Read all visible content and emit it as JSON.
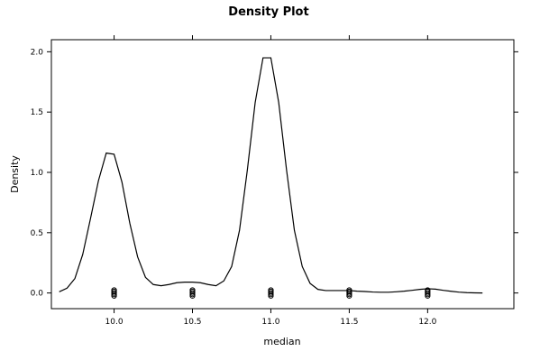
{
  "chart_data": {
    "type": "line",
    "title": "Density Plot",
    "xlabel": "median",
    "ylabel": "Density",
    "xlim": [
      9.6,
      12.55
    ],
    "ylim": [
      -0.13,
      2.1
    ],
    "x_ticks": [
      10.0,
      10.5,
      11.0,
      11.5,
      12.0
    ],
    "x_tick_labels": [
      "10.0",
      "10.5",
      "11.0",
      "11.5",
      "12.0"
    ],
    "y_ticks": [
      0.0,
      0.5,
      1.0,
      1.5,
      2.0
    ],
    "y_tick_labels": [
      "0.0",
      "0.5",
      "1.0",
      "1.5",
      "2.0"
    ],
    "grid": false,
    "series": [
      {
        "x": [
          9.65,
          9.7,
          9.75,
          9.8,
          9.85,
          9.9,
          9.95,
          10.0,
          10.05,
          10.1,
          10.15,
          10.2,
          10.25,
          10.3,
          10.35,
          10.4,
          10.45,
          10.5,
          10.55,
          10.6,
          10.65,
          10.7,
          10.75,
          10.8,
          10.85,
          10.9,
          10.95,
          11.0,
          11.05,
          11.1,
          11.15,
          11.2,
          11.25,
          11.3,
          11.35,
          11.4,
          11.45,
          11.5,
          11.55,
          11.6,
          11.65,
          11.7,
          11.75,
          11.8,
          11.85,
          11.9,
          11.95,
          12.0,
          12.05,
          12.1,
          12.15,
          12.2,
          12.25,
          12.3,
          12.35
        ],
        "y": [
          0.01,
          0.04,
          0.12,
          0.32,
          0.62,
          0.93,
          1.16,
          1.15,
          0.92,
          0.58,
          0.3,
          0.13,
          0.07,
          0.06,
          0.07,
          0.085,
          0.09,
          0.09,
          0.085,
          0.07,
          0.06,
          0.1,
          0.22,
          0.52,
          1.02,
          1.58,
          1.95,
          1.95,
          1.58,
          1.02,
          0.52,
          0.22,
          0.08,
          0.03,
          0.02,
          0.02,
          0.02,
          0.02,
          0.015,
          0.012,
          0.008,
          0.006,
          0.006,
          0.01,
          0.015,
          0.022,
          0.03,
          0.035,
          0.032,
          0.022,
          0.014,
          0.007,
          0.003,
          0.001,
          0.0
        ]
      }
    ],
    "rug_x": [
      10.0,
      10.5,
      11.0,
      11.5,
      12.0
    ]
  }
}
